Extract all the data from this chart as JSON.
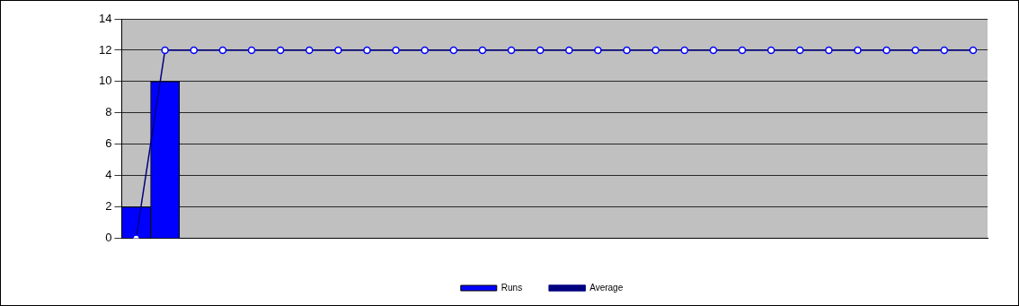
{
  "chart_data": {
    "type": "bar",
    "categories": [
      null,
      null,
      null,
      null,
      null,
      null,
      null,
      null,
      null,
      null,
      null,
      null,
      null,
      null,
      null,
      null,
      null,
      null,
      null,
      null,
      null,
      null,
      null,
      null,
      null,
      null,
      null,
      null,
      null,
      null
    ],
    "series": [
      {
        "name": "Runs",
        "color": "#0000ff",
        "values": [
          2,
          10,
          null,
          null,
          null,
          null,
          null,
          null,
          null,
          null,
          null,
          null,
          null,
          null,
          null,
          null,
          null,
          null,
          null,
          null,
          null,
          null,
          null,
          null,
          null,
          null,
          null,
          null,
          null,
          null
        ]
      },
      {
        "name": "Average",
        "type": "line",
        "color": "#000080",
        "marker": "circle",
        "values": [
          0,
          12,
          12,
          12,
          12,
          12,
          12,
          12,
          12,
          12,
          12,
          12,
          12,
          12,
          12,
          12,
          12,
          12,
          12,
          12,
          12,
          12,
          12,
          12,
          12,
          12,
          12,
          12,
          12,
          12
        ]
      }
    ],
    "ylim": [
      0,
      14
    ],
    "yticks": [
      0,
      2,
      4,
      6,
      8,
      10,
      12,
      14
    ],
    "grid": "y",
    "legend": "bottom"
  }
}
